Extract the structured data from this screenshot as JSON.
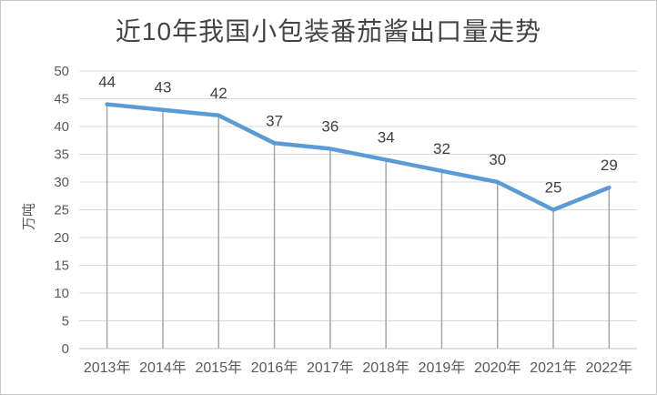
{
  "chart": {
    "title": "近10年我国小包装番茄酱出口量走势",
    "y_axis_title": "万吨"
  },
  "chart_data": {
    "type": "line",
    "title": "近10年我国小包装番茄酱出口量走势",
    "categories": [
      "2013年",
      "2014年",
      "2015年",
      "2016年",
      "2017年",
      "2018年",
      "2019年",
      "2020年",
      "2021年",
      "2022年"
    ],
    "values": [
      44,
      43,
      42,
      37,
      36,
      34,
      32,
      30,
      25,
      29
    ],
    "data_labels": [
      "44",
      "43",
      "42",
      "37",
      "36",
      "34",
      "32",
      "30",
      "25",
      "29"
    ],
    "xlabel": "",
    "ylabel": "万吨",
    "ylim": [
      0,
      50
    ],
    "ytick_step": 5,
    "grid": true,
    "drop_lines": true,
    "legend_position": "none",
    "colors": {
      "series_line": "#5B9BD5",
      "gridline": "#D9D9D9",
      "axis_line": "#BFBFBF",
      "drop_line": "#A6A6A6",
      "title_text": "#444444",
      "axis_text": "#595959",
      "data_label_text": "#404040"
    }
  }
}
